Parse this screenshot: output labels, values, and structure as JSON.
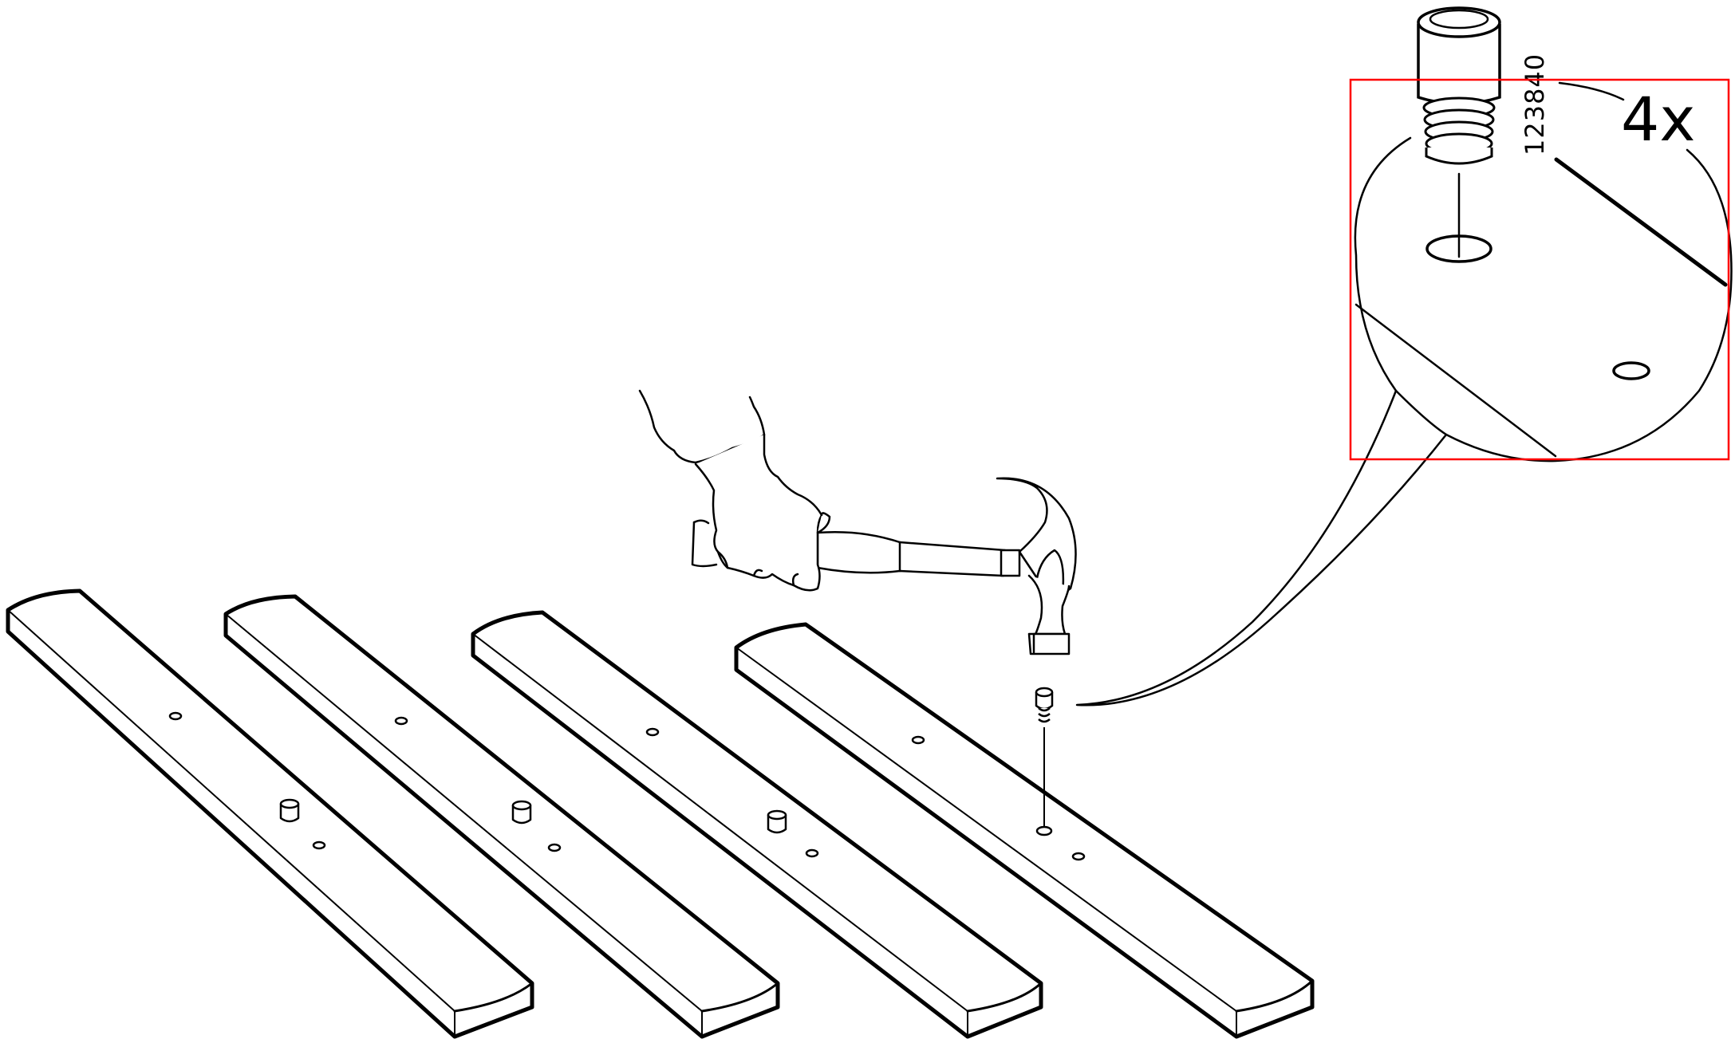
{
  "diagram": {
    "part_number": "123840",
    "quantity_label": "4x",
    "board_count": 4,
    "highlight_color": "#ff0000",
    "line_color": "#000000",
    "background_color": "#ffffff"
  }
}
